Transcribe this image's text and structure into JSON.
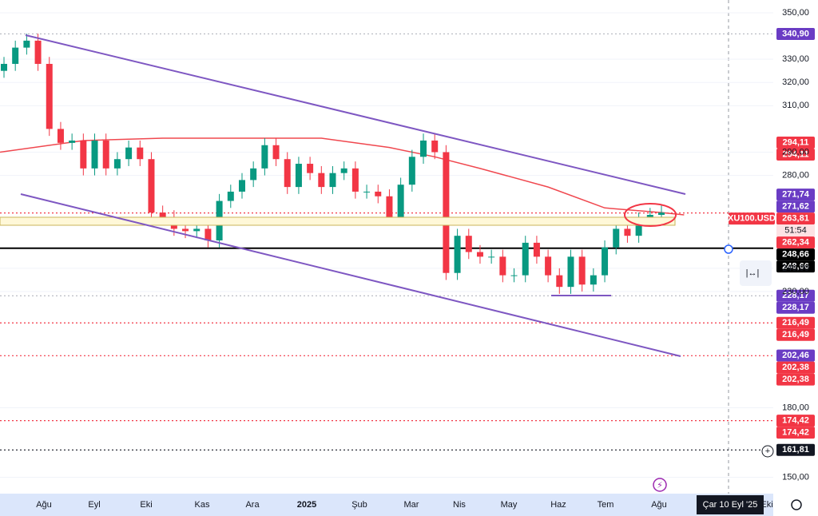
{
  "chart_data": {
    "type": "candlestick",
    "symbol": "XU100.USD",
    "countdown": "51:54",
    "up_color": "#089981",
    "down_color": "#f23645",
    "ylim": [
      143,
      355.5
    ],
    "yticks": [
      {
        "value": 350,
        "label": "350,00"
      },
      {
        "value": 330,
        "label": "330,00"
      },
      {
        "value": 320,
        "label": "320,00"
      },
      {
        "value": 310,
        "label": "310,00"
      },
      {
        "value": 290,
        "label": "290,00"
      },
      {
        "value": 280,
        "label": "280,00"
      },
      {
        "value": 240,
        "label": "240,00"
      },
      {
        "value": 230,
        "label": "230,00"
      },
      {
        "value": 180,
        "label": "180,00"
      },
      {
        "value": 150,
        "label": "150,00"
      }
    ],
    "time_labels": [
      "Ağu",
      "Eyl",
      "Eki",
      "Kas",
      "Ara",
      "2025",
      "Şub",
      "Mar",
      "Nis",
      "May",
      "Haz",
      "Tem",
      "Ağu",
      "Eki"
    ],
    "crosshair_date": "Çar 10 Eyl '25",
    "open": [
      325,
      328,
      335,
      338,
      328,
      300,
      294,
      295,
      283,
      295,
      283,
      287,
      292,
      287,
      264,
      262,
      257,
      256,
      257,
      252,
      269,
      273,
      278,
      283,
      293,
      287,
      275,
      285,
      281,
      275,
      281,
      283,
      273,
      273,
      271,
      262,
      276,
      288,
      295,
      290,
      238,
      254,
      247,
      245,
      245,
      237,
      237,
      251,
      245,
      237,
      232,
      245,
      233,
      237,
      249,
      257,
      254,
      261,
      263
    ],
    "high": [
      331,
      338,
      341,
      341,
      331,
      303,
      298,
      298,
      298,
      298,
      290,
      295,
      295,
      290,
      267,
      265,
      260,
      260,
      260,
      272,
      276,
      281,
      286,
      296,
      296,
      290,
      288,
      288,
      284,
      284,
      286,
      286,
      276,
      276,
      274,
      279,
      291,
      298,
      298,
      293,
      257,
      257,
      250,
      248,
      248,
      240,
      254,
      254,
      248,
      240,
      248,
      248,
      240,
      252,
      260,
      260,
      264,
      266,
      267
    ],
    "low": [
      322,
      325,
      332,
      325,
      297,
      291,
      291,
      280,
      280,
      280,
      280,
      284,
      284,
      261,
      259,
      254,
      253,
      253,
      249,
      249,
      266,
      270,
      275,
      280,
      284,
      272,
      272,
      278,
      272,
      272,
      278,
      270,
      270,
      268,
      259,
      259,
      273,
      285,
      287,
      235,
      235,
      244,
      242,
      242,
      234,
      234,
      234,
      242,
      234,
      229,
      229,
      230,
      230,
      234,
      246,
      251,
      251,
      258,
      260
    ],
    "close": [
      328,
      335,
      338,
      328,
      300,
      294,
      295,
      283,
      295,
      283,
      287,
      292,
      287,
      264,
      262,
      257,
      256,
      257,
      252,
      269,
      273,
      278,
      283,
      293,
      287,
      275,
      285,
      281,
      275,
      281,
      283,
      273,
      273,
      271,
      262,
      276,
      288,
      295,
      290,
      238,
      254,
      247,
      245,
      245,
      237,
      237,
      251,
      245,
      237,
      232,
      245,
      233,
      237,
      249,
      257,
      254,
      261,
      263,
      264
    ],
    "moving_average": {
      "color": "#f0484f",
      "x": [
        0,
        7,
        14,
        21,
        28,
        34,
        38,
        42,
        48,
        53,
        58,
        60
      ],
      "values": [
        290,
        295,
        296,
        296,
        296,
        292,
        288,
        283,
        275,
        266,
        264,
        263
      ]
    },
    "price_tags": [
      {
        "value": 340.9,
        "label": "340,90",
        "color": "#6a3cc4",
        "line": "#b2b5be"
      },
      {
        "value": 294.11,
        "label": "294,11",
        "color": "#f23645"
      },
      {
        "value": 294.11,
        "label": "294,11",
        "color": "#f23645"
      },
      {
        "value": 271.74,
        "label": "271,74",
        "color": "#6a3cc4"
      },
      {
        "value": 271.62,
        "label": "271,62",
        "color": "#6a3cc4"
      },
      {
        "value": 263.81,
        "label": "263,81",
        "color": "#f23645",
        "line": "#f23645"
      },
      {
        "value": 262.34,
        "label": "262,34",
        "color": "#f23645"
      },
      {
        "value": 248.66,
        "label": "248,66",
        "color": "#000000",
        "line": "#000000"
      },
      {
        "value": 248.66,
        "label": "248,66",
        "color": "#000000"
      },
      {
        "value": 228.17,
        "label": "228,17",
        "color": "#6a3cc4",
        "line": "#b2b5be"
      },
      {
        "value": 228.17,
        "label": "228,17",
        "color": "#6a3cc4"
      },
      {
        "value": 216.49,
        "label": "216,49",
        "color": "#f23645",
        "line": "#f23645"
      },
      {
        "value": 216.49,
        "label": "216,49",
        "color": "#f23645"
      },
      {
        "value": 202.46,
        "label": "202,46",
        "color": "#6a3cc4"
      },
      {
        "value": 202.38,
        "label": "202,38",
        "color": "#f23645",
        "line": "#f23645"
      },
      {
        "value": 202.38,
        "label": "202,38",
        "color": "#f23645"
      },
      {
        "value": 174.42,
        "label": "174,42",
        "color": "#f23645",
        "line": "#f23645"
      },
      {
        "value": 174.42,
        "label": "174,42",
        "color": "#f23645"
      },
      {
        "value": 161.81,
        "label": "161,81",
        "color": "#131722",
        "line": "#131722"
      }
    ]
  }
}
